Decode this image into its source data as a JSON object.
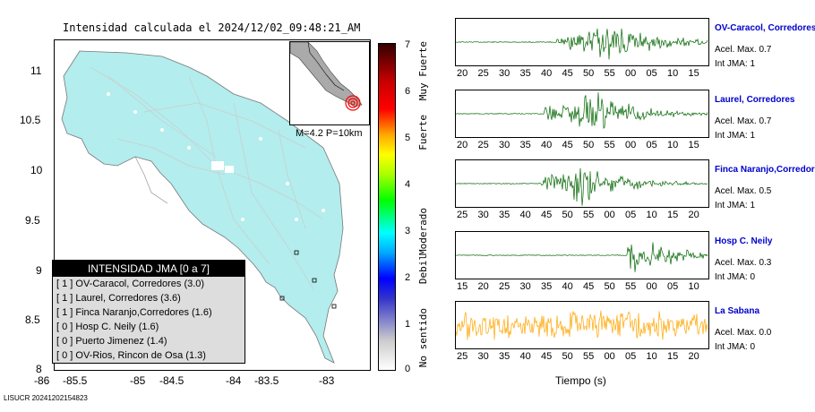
{
  "title": "Intensidad calculada el 2024/12/02_09:48:21_AM",
  "map": {
    "y_ticks": [
      "11",
      "10.5",
      "10",
      "9.5",
      "9",
      "8.5",
      "8"
    ],
    "x_ticks": [
      "-86",
      "-85.5",
      "-85",
      "-84.5",
      "-84",
      "-83.5",
      "-83"
    ],
    "land_color": "#b3eded",
    "inset_caption": "M=4.2 P=10km"
  },
  "legend": {
    "header": "INTENSIDAD JMA [0 a 7]",
    "items": [
      "[ 1 ]  OV-Caracol, Corredores (3.0)",
      "[ 1 ]  Laurel, Corredores (3.6)",
      "[ 1 ]  Finca Naranjo,Corredores (1.6)",
      "[ 0 ]  Hosp C. Neily (1.6)",
      "[ 0 ]  Puerto Jimenez (1.4)",
      "[ 0 ]  OV-Rios, Rincon de Osa (1.3)"
    ]
  },
  "colorbar": {
    "ticks": [
      "7",
      "6",
      "5",
      "4",
      "3",
      "2",
      "1",
      "0"
    ],
    "labels": [
      "Muy Fuerte",
      "Fuerte",
      "Moderado",
      "Debil",
      "No sentido"
    ]
  },
  "traces": [
    {
      "name": "OV-Caracol, Corredores",
      "acel": "Acel. Max. 0.7",
      "int": "Int JMA: 1",
      "ticks": [
        "20",
        "25",
        "30",
        "35",
        "40",
        "45",
        "50",
        "55",
        "00",
        "05",
        "10",
        "15"
      ],
      "color": "#006400",
      "onset": 0.4,
      "peak": 0.62
    },
    {
      "name": "Laurel, Corredores",
      "acel": "Acel. Max. 0.7",
      "int": "Int JMA: 1",
      "ticks": [
        "20",
        "25",
        "30",
        "35",
        "40",
        "45",
        "50",
        "55",
        "00",
        "05",
        "10",
        "15"
      ],
      "color": "#006400",
      "onset": 0.35,
      "peak": 0.55
    },
    {
      "name": "Finca Naranjo,Corredores",
      "acel": "Acel. Max. 0.5",
      "int": "Int JMA: 1",
      "ticks": [
        "25",
        "30",
        "35",
        "40",
        "45",
        "50",
        "55",
        "00",
        "05",
        "10",
        "15",
        "20"
      ],
      "color": "#006400",
      "onset": 0.34,
      "peak": 0.5
    },
    {
      "name": "Hosp C. Neily",
      "acel": "Acel. Max. 0.3",
      "int": "Int JMA: 0",
      "ticks": [
        "15",
        "20",
        "25",
        "30",
        "35",
        "40",
        "45",
        "50",
        "55",
        "00",
        "05",
        "10"
      ],
      "color": "#006400",
      "onset": 0.68,
      "peak": 0.7
    },
    {
      "name": "La Sabana",
      "acel": "Acel. Max. 0.0",
      "int": "Int JMA: 0",
      "ticks": [
        "25",
        "30",
        "35",
        "40",
        "45",
        "50",
        "55",
        "00",
        "05",
        "10",
        "15",
        "20"
      ],
      "color": "#ffa500",
      "onset": 0.0,
      "peak": 0.8
    }
  ],
  "time_axis_label": "Tiempo (s)",
  "footer": "LISUCR 20241202154823"
}
